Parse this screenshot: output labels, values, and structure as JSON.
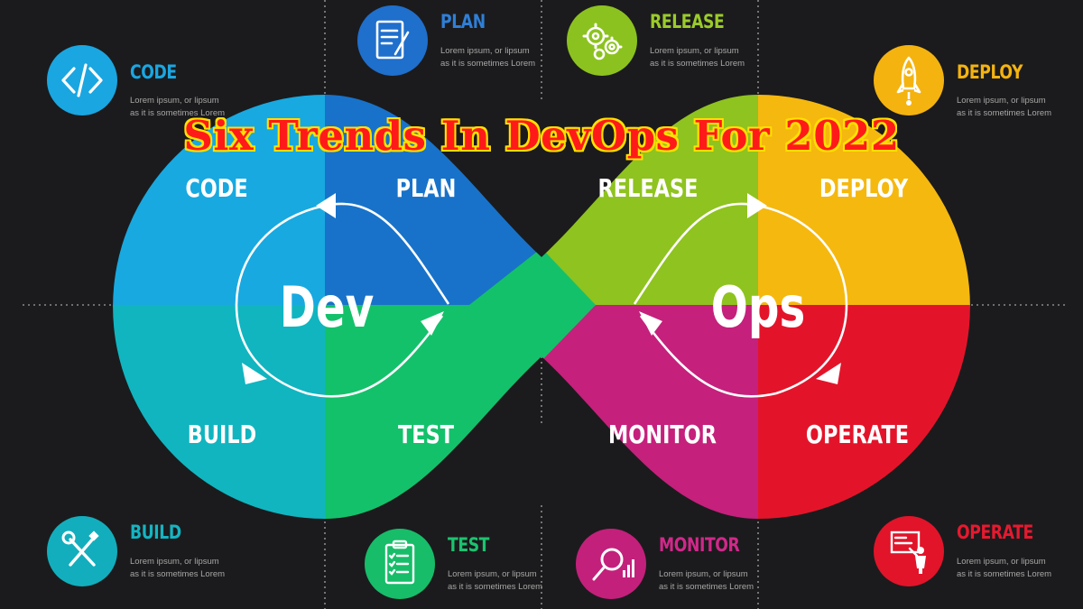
{
  "headline": "Six Trends In DevOps For 2022",
  "loop": {
    "dev_label": "Dev",
    "ops_label": "Ops",
    "segments": [
      {
        "id": "code",
        "label": "CODE",
        "color": "#18a9e0"
      },
      {
        "id": "plan",
        "label": "PLAN",
        "color": "#1872c9"
      },
      {
        "id": "release",
        "label": "RELEASE",
        "color": "#8fc31f"
      },
      {
        "id": "deploy",
        "label": "DEPLOY",
        "color": "#f5b80f"
      },
      {
        "id": "operate",
        "label": "OPERATE",
        "color": "#e3142a"
      },
      {
        "id": "monitor",
        "label": "MONITOR",
        "color": "#c5207c"
      },
      {
        "id": "test",
        "label": "TEST",
        "color": "#14c16b"
      },
      {
        "id": "build",
        "label": "BUILD",
        "color": "#10b5c0"
      }
    ]
  },
  "callouts": [
    {
      "id": "code",
      "title": "CODE",
      "desc": "Lorem ipsum, or lipsum as it is sometimes Lorem",
      "color": "#1aa6e1",
      "icon": "code-brackets-icon"
    },
    {
      "id": "plan",
      "title": "PLAN",
      "desc": "Lorem ipsum, or lipsum as it is sometimes Lorem",
      "color": "#1f6fcc",
      "icon": "notepad-pen-icon"
    },
    {
      "id": "release",
      "title": "RELEASE",
      "desc": "Lorem ipsum, or lipsum as it is sometimes Lorem",
      "color": "#8cc21f",
      "icon": "gears-icon"
    },
    {
      "id": "deploy",
      "title": "DEPLOY",
      "desc": "Lorem ipsum, or lipsum as it is sometimes Lorem",
      "color": "#f4b30f",
      "icon": "rocket-icon"
    },
    {
      "id": "build",
      "title": "BUILD",
      "desc": "Lorem ipsum, or lipsum as it is sometimes Lorem",
      "color": "#12aebd",
      "icon": "wrench-screwdriver-icon"
    },
    {
      "id": "test",
      "title": "TEST",
      "desc": "Lorem ipsum, or lipsum as it is sometimes Lorem",
      "color": "#17bd69",
      "icon": "clipboard-checklist-icon"
    },
    {
      "id": "monitor",
      "title": "MONITOR",
      "desc": "Lorem ipsum, or lipsum as it is sometimes Lorem",
      "color": "#c3207b",
      "icon": "magnifier-chart-icon"
    },
    {
      "id": "operate",
      "title": "OPERATE",
      "desc": "Lorem ipsum, or lipsum as it is sometimes Lorem",
      "color": "#e1142a",
      "icon": "presenter-board-icon"
    }
  ]
}
